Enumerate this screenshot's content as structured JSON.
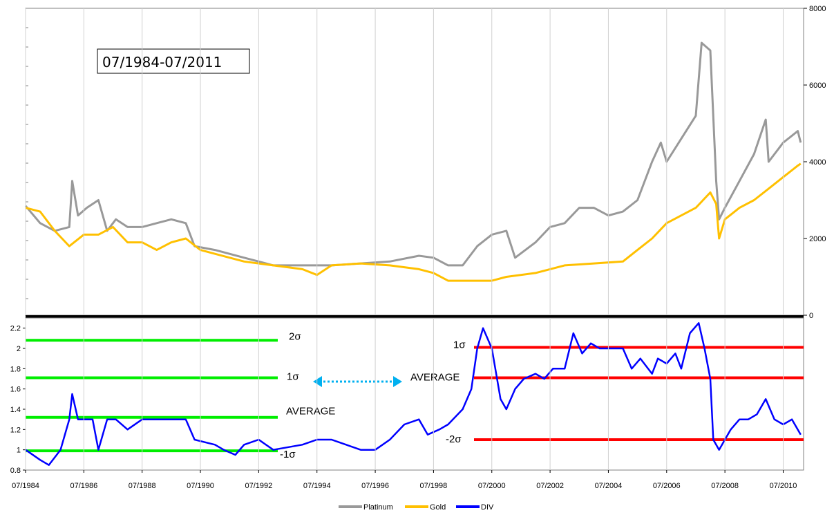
{
  "chart_data": {
    "type": "line",
    "title_box": "07/1984-07/2011",
    "x_ticks": [
      "07/1984",
      "07/1986",
      "07/1988",
      "07/1990",
      "07/1992",
      "07/1994",
      "07/1996",
      "07/1998",
      "07/2000",
      "07/2002",
      "07/2004",
      "07/2006",
      "07/2008",
      "07/2010"
    ],
    "upper": {
      "y_ticks": [
        "0",
        "2000",
        "4000",
        "6000",
        "8000"
      ],
      "ylim": [
        0,
        8000
      ],
      "axis_side": "right",
      "series": [
        {
          "name": "Platinum",
          "color": "#999999",
          "x": [
            1984.5,
            1985.0,
            1985.5,
            1986.0,
            1986.1,
            1986.3,
            1986.6,
            1987.0,
            1987.3,
            1987.6,
            1988.0,
            1988.5,
            1989.0,
            1989.5,
            1990.0,
            1990.3,
            1991.0,
            1992.0,
            1993.0,
            1994.0,
            1995.0,
            1996.0,
            1997.0,
            1998.0,
            1998.5,
            1999.0,
            1999.5,
            2000.0,
            2000.5,
            2001.0,
            2001.3,
            2002.0,
            2002.5,
            2003.0,
            2003.5,
            2004.0,
            2004.5,
            2005.0,
            2005.5,
            2006.0,
            2006.3,
            2006.5,
            2007.0,
            2007.5,
            2007.7,
            2008.0,
            2008.2,
            2008.3,
            2008.5,
            2009.0,
            2009.5,
            2009.9,
            2010.0,
            2010.5,
            2011.0,
            2011.1
          ],
          "y": [
            2850,
            2400,
            2200,
            2300,
            3500,
            2600,
            2800,
            3000,
            2200,
            2500,
            2300,
            2300,
            2400,
            2500,
            2400,
            1800,
            1700,
            1500,
            1300,
            1300,
            1300,
            1350,
            1400,
            1550,
            1500,
            1300,
            1300,
            1800,
            2100,
            2200,
            1500,
            1900,
            2300,
            2400,
            2800,
            2800,
            2600,
            2700,
            3000,
            4000,
            4500,
            4000,
            4600,
            5200,
            7100,
            6900,
            3500,
            2500,
            2800,
            3500,
            4200,
            5100,
            4000,
            4500,
            4800,
            4500
          ]
        },
        {
          "name": "Gold",
          "color": "#ffc000",
          "x": [
            1984.5,
            1985.0,
            1985.5,
            1986.0,
            1986.5,
            1987.0,
            1987.5,
            1988.0,
            1988.5,
            1989.0,
            1989.5,
            1990.0,
            1990.5,
            1991.0,
            1992.0,
            1993.0,
            1994.0,
            1994.5,
            1995.0,
            1996.0,
            1997.0,
            1998.0,
            1998.5,
            1999.0,
            1999.5,
            2000.0,
            2000.5,
            2001.0,
            2002.0,
            2003.0,
            2004.0,
            2005.0,
            2005.5,
            2006.0,
            2006.5,
            2007.0,
            2007.5,
            2008.0,
            2008.2,
            2008.3,
            2008.5,
            2009.0,
            2009.5,
            2010.0,
            2010.5,
            2011.0,
            2011.1
          ],
          "y": [
            2800,
            2700,
            2200,
            1800,
            2100,
            2100,
            2300,
            1900,
            1900,
            1700,
            1900,
            2000,
            1700,
            1600,
            1400,
            1300,
            1200,
            1050,
            1300,
            1350,
            1300,
            1200,
            1100,
            900,
            900,
            900,
            900,
            1000,
            1100,
            1300,
            1350,
            1400,
            1700,
            2000,
            2400,
            2600,
            2800,
            3200,
            2900,
            2000,
            2500,
            2800,
            3000,
            3300,
            3600,
            3900,
            3950
          ]
        }
      ]
    },
    "lower": {
      "y_ticks": [
        "0.8",
        "1",
        "1.2",
        "1.4",
        "1.6",
        "1.8",
        "2",
        "2.2"
      ],
      "ylim": [
        0.8,
        2.3
      ],
      "axis_side": "left",
      "series": [
        {
          "name": "DIV",
          "color": "#0000ff",
          "x": [
            1984.5,
            1985.0,
            1985.3,
            1985.7,
            1986.0,
            1986.1,
            1986.3,
            1986.8,
            1987.0,
            1987.3,
            1987.6,
            1988.0,
            1988.5,
            1989.0,
            1989.5,
            1990.0,
            1990.3,
            1991.0,
            1991.3,
            1991.7,
            1992.0,
            1992.5,
            1993.0,
            1994.0,
            1994.5,
            1995.0,
            1995.5,
            1996.0,
            1996.5,
            1997.0,
            1997.5,
            1998.0,
            1998.3,
            1998.7,
            1999.0,
            1999.5,
            1999.8,
            2000.0,
            2000.2,
            2000.5,
            2000.8,
            2001.0,
            2001.3,
            2001.6,
            2002.0,
            2002.3,
            2002.6,
            2003.0,
            2003.3,
            2003.6,
            2003.9,
            2004.2,
            2004.6,
            2005.0,
            2005.3,
            2005.6,
            2006.0,
            2006.2,
            2006.5,
            2006.8,
            2007.0,
            2007.3,
            2007.6,
            2007.8,
            2008.0,
            2008.1,
            2008.3,
            2008.5,
            2008.7,
            2009.0,
            2009.3,
            2009.6,
            2009.9,
            2010.2,
            2010.5,
            2010.8,
            2011.1
          ],
          "y": [
            1.0,
            0.9,
            0.85,
            1.0,
            1.3,
            1.55,
            1.3,
            1.3,
            1.0,
            1.3,
            1.3,
            1.2,
            1.3,
            1.3,
            1.3,
            1.3,
            1.1,
            1.05,
            1.0,
            0.95,
            1.05,
            1.1,
            1.0,
            1.05,
            1.1,
            1.1,
            1.05,
            1.0,
            1.0,
            1.1,
            1.25,
            1.3,
            1.15,
            1.2,
            1.25,
            1.4,
            1.6,
            2.0,
            2.2,
            2.0,
            1.5,
            1.4,
            1.6,
            1.7,
            1.75,
            1.7,
            1.8,
            1.8,
            2.15,
            1.95,
            2.05,
            2.0,
            2.0,
            2.0,
            1.8,
            1.9,
            1.75,
            1.9,
            1.85,
            1.95,
            1.8,
            2.15,
            2.25,
            2.0,
            1.7,
            1.1,
            1.0,
            1.1,
            1.2,
            1.3,
            1.3,
            1.35,
            1.5,
            1.3,
            1.25,
            1.3,
            1.15
          ]
        }
      ],
      "green_lines": [
        {
          "label": "2σ",
          "value": 2.08
        },
        {
          "label": "1σ",
          "value": 1.71
        },
        {
          "label": "AVERAGE",
          "value": 1.32
        },
        {
          "label": "-1σ",
          "value": 0.99
        }
      ],
      "red_lines": [
        {
          "label": "1σ",
          "value": 2.01
        },
        {
          "label": "AVERAGE",
          "value": 1.71
        },
        {
          "label": "-2σ",
          "value": 1.1
        }
      ],
      "green_color": "#00ee00",
      "red_color": "#ff0000",
      "arrow_color": "#00b0f0"
    },
    "legend": [
      {
        "label": "Platinum",
        "color": "#999999"
      },
      {
        "label": "Gold",
        "color": "#ffc000"
      },
      {
        "label": "DIV",
        "color": "#0000ff"
      }
    ],
    "legend_position": "bottom-center"
  }
}
